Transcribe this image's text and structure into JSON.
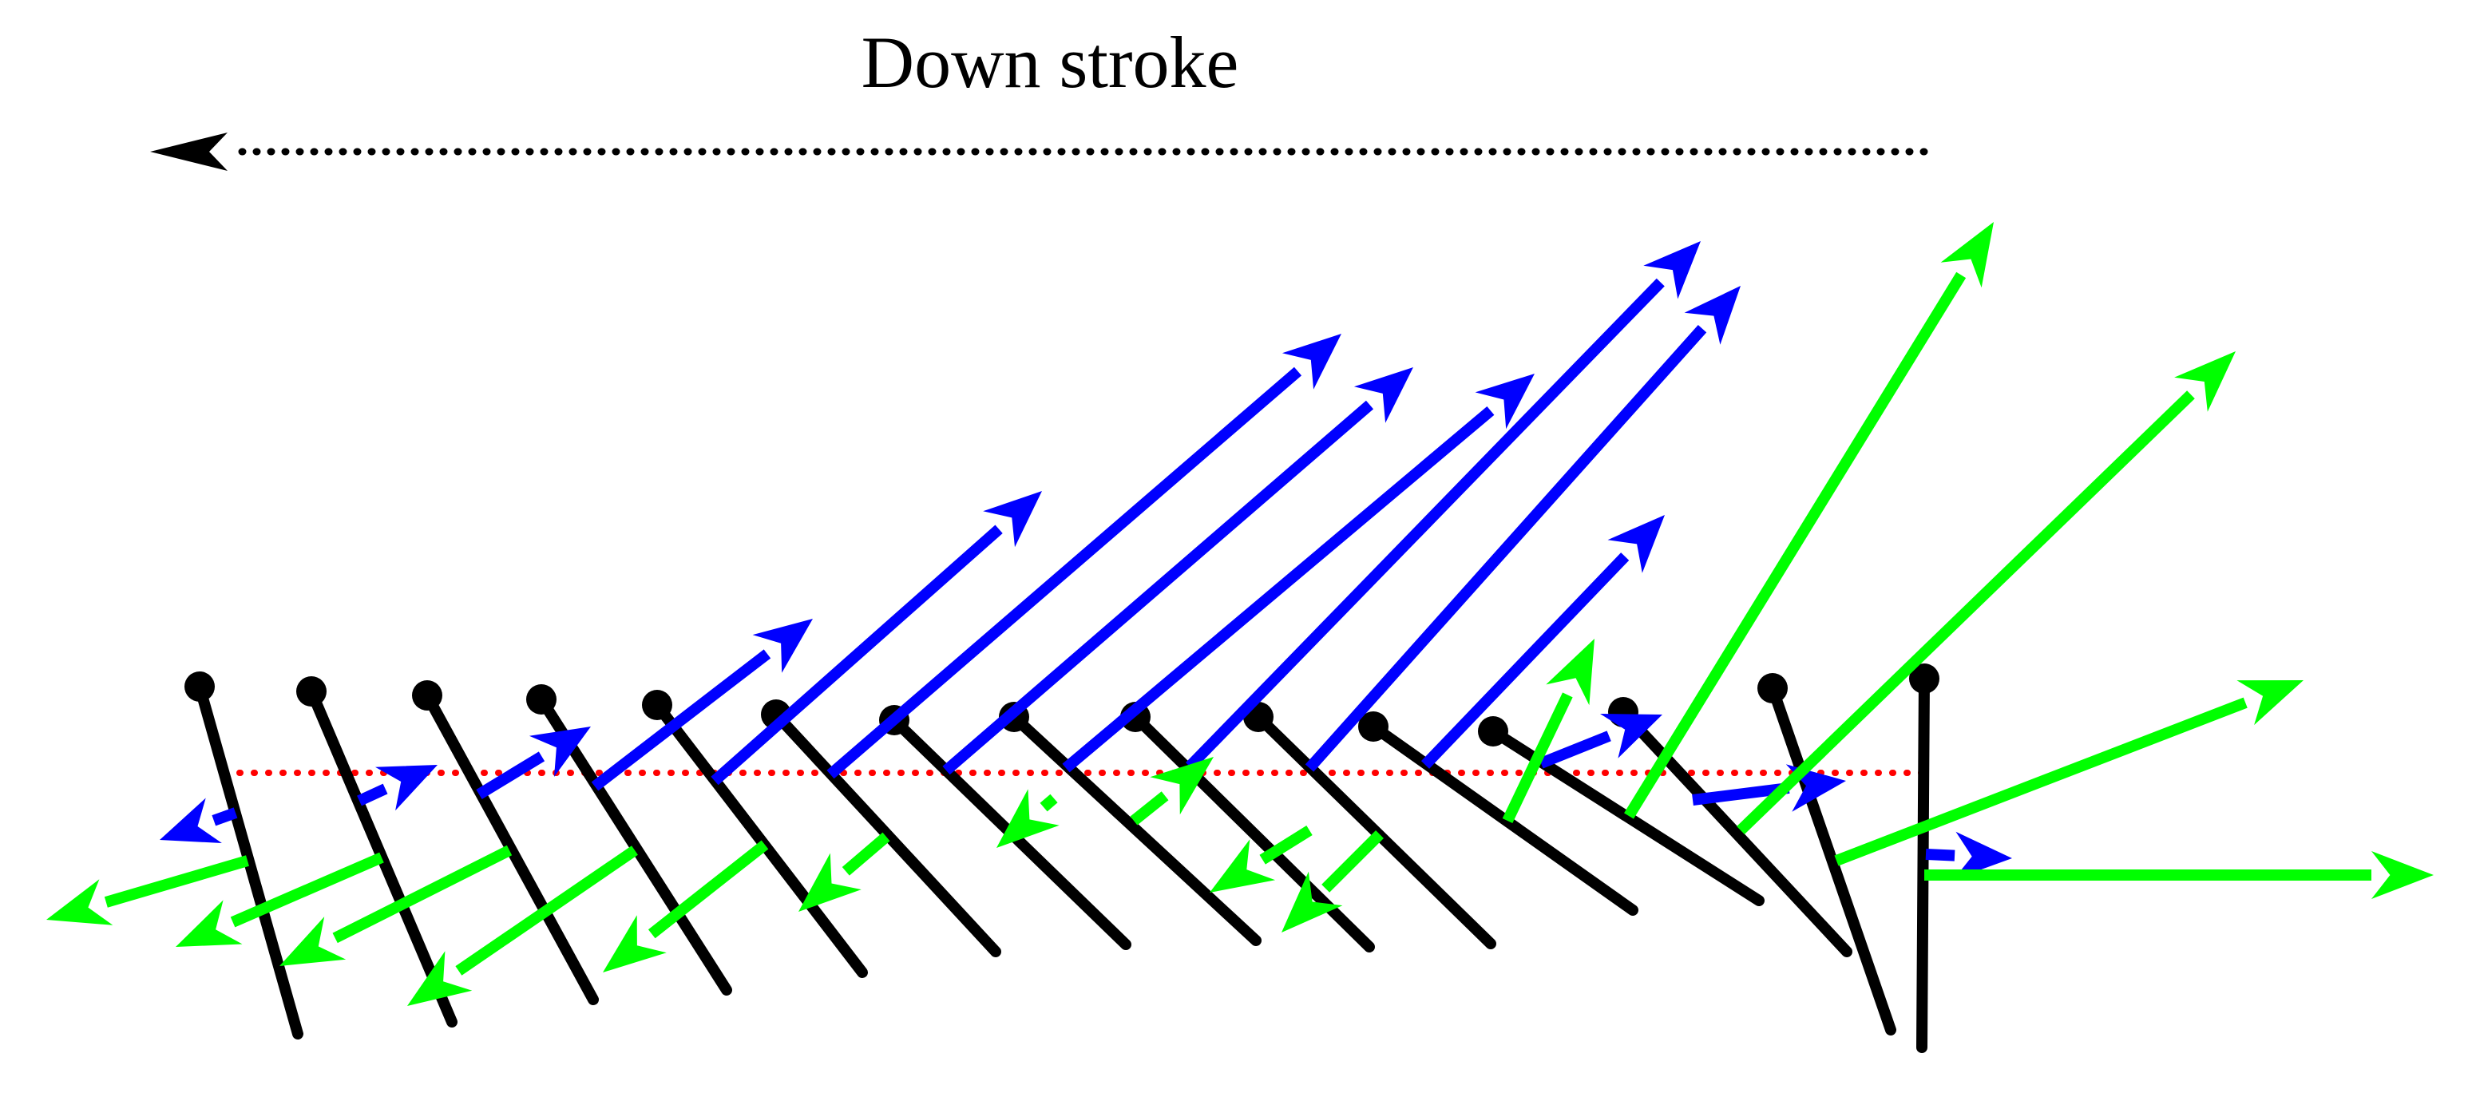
{
  "title": "Down stroke",
  "colors": {
    "wing": "#000000",
    "blue_vector": "#0000ff",
    "green_vector": "#00ff00",
    "stroke_plane": "#ff0000",
    "direction_arrow": "#000000"
  },
  "legend_arrow": {
    "direction": "left",
    "style": "dotted"
  },
  "stroke_plane": {
    "style": "dotted"
  },
  "wing_sections_count": 15
}
